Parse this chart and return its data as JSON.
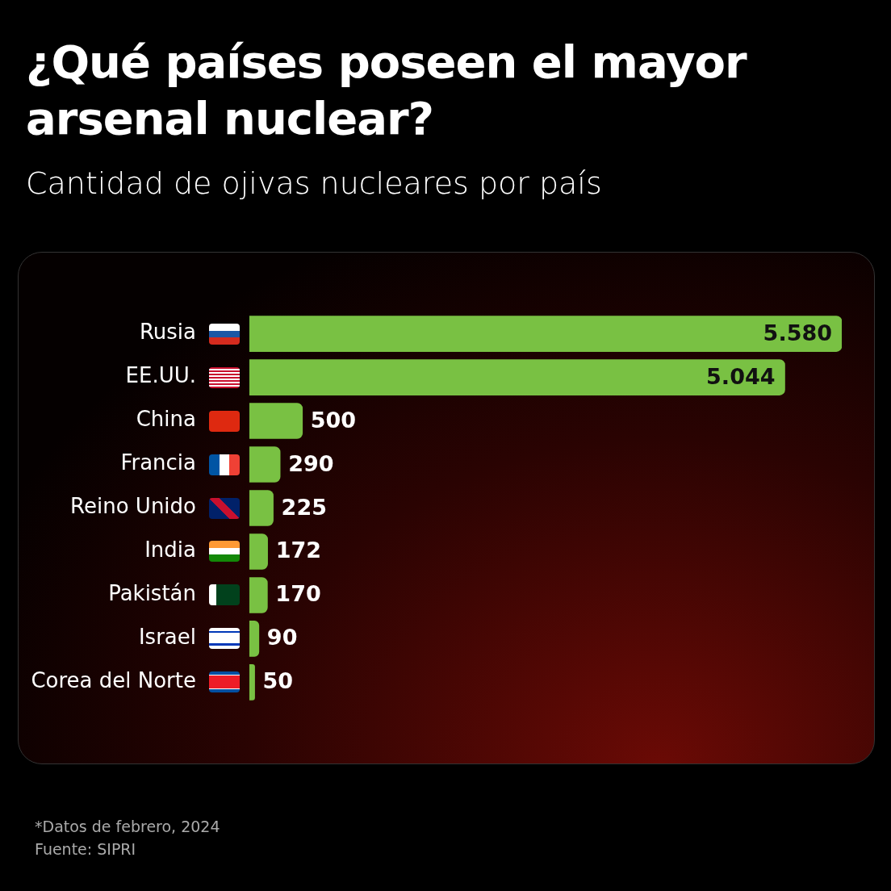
{
  "chart_data": {
    "type": "bar",
    "orientation": "horizontal",
    "title": "¿Qué países poseen el mayor arsenal nuclear?",
    "subtitle": "Cantidad de ojivas nucleares por país",
    "categories": [
      "Rusia",
      "EE.UU.",
      "China",
      "Francia",
      "Reino Unido",
      "India",
      "Pakistán",
      "Israel",
      "Corea del Norte"
    ],
    "values": [
      5580,
      5044,
      500,
      290,
      225,
      172,
      170,
      90,
      50
    ],
    "value_labels": [
      "5.580",
      "5.044",
      "500",
      "290",
      "225",
      "172",
      "170",
      "90",
      "50"
    ],
    "color": "#79c143",
    "legend": false,
    "tick_labels": "y",
    "annotations": [
      "*Datos de febrero, 2024",
      "Fuente: SIPRI"
    ]
  }
}
